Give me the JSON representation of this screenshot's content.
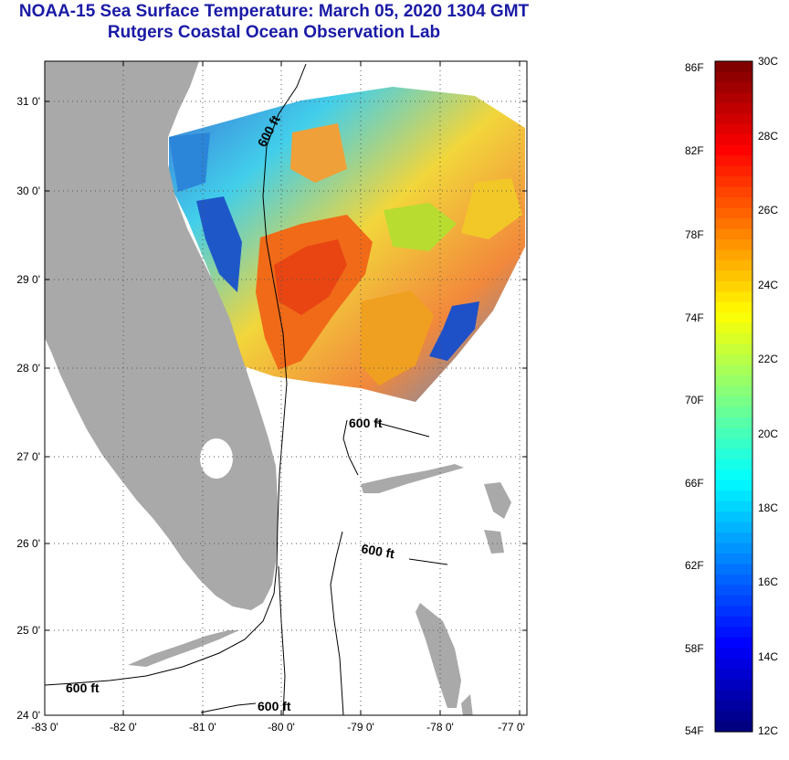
{
  "header": {
    "title": "NOAA-15 Sea Surface Temperature:  March 05, 2020 1304 GMT",
    "subtitle": "Rutgers Coastal Ocean Observation Lab"
  },
  "map": {
    "lat_ticks": [
      "31 0'",
      "30 0'",
      "29 0'",
      "28 0'",
      "27 0'",
      "26 0'",
      "25 0'",
      "24 0'"
    ],
    "lon_ticks": [
      "-83 0'",
      "-82 0'",
      "-81 0'",
      "-80 0'",
      "-79 0'",
      "-78 0'",
      "-77 0'"
    ],
    "contour_labels": [
      "600 ft",
      "600 ft",
      "600 ft",
      "600 ft",
      "600 ft"
    ],
    "colors": {
      "land": "#a9a9a9",
      "no_data": "#ffffff",
      "contour": "#000000"
    }
  },
  "colorbar": {
    "fahrenheit_labels": [
      "86F",
      "82F",
      "78F",
      "74F",
      "70F",
      "66F",
      "62F",
      "58F",
      "54F"
    ],
    "celsius_labels": [
      "30C",
      "28C",
      "26C",
      "24C",
      "22C",
      "20C",
      "18C",
      "16C",
      "14C",
      "12C"
    ],
    "range_celsius": [
      12,
      30
    ],
    "range_fahrenheit": [
      54,
      86
    ]
  }
}
